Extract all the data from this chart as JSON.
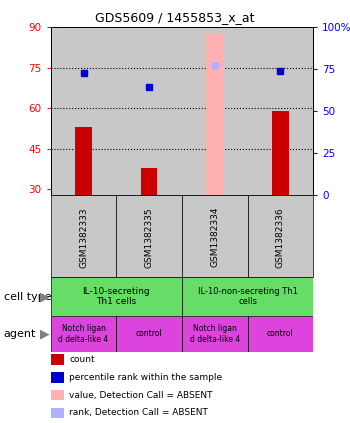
{
  "title": "GDS5609 / 1455853_x_at",
  "samples": [
    "GSM1382333",
    "GSM1382335",
    "GSM1382334",
    "GSM1382336"
  ],
  "bar_values": [
    53,
    38,
    null,
    59
  ],
  "dot_values": [
    73,
    68,
    76,
    74
  ],
  "absent_bar_value": 88,
  "absent_dot_value": 76,
  "absent_sample_idx": 2,
  "ylim_left": [
    28,
    90
  ],
  "ylim_right": [
    0,
    100
  ],
  "yticks_left": [
    30,
    45,
    60,
    75,
    90
  ],
  "yticks_right": [
    0,
    25,
    50,
    75,
    100
  ],
  "yticklabels_left": [
    "30",
    "45",
    "60",
    "75",
    "90"
  ],
  "yticklabels_right": [
    "0",
    "25",
    "50",
    "75",
    "100%"
  ],
  "hlines": [
    45,
    60,
    75
  ],
  "cell_type_labels": [
    "IL-10-secreting\nTh1 cells",
    "IL-10-non-secreting Th1\ncells"
  ],
  "cell_type_color": "#66dd66",
  "agent_labels": [
    "Notch ligan\nd delta-like 4",
    "control",
    "Notch ligan\nd delta-like 4",
    "control"
  ],
  "agent_color": "#dd44dd",
  "bar_color": "#cc0000",
  "dot_color": "#0000cc",
  "absent_bar_color": "#ffb0b0",
  "absent_dot_color": "#b0b0ff",
  "bar_width": 0.25,
  "absent_bar_width": 0.28,
  "plot_bg_color": "#ffffff",
  "col_bg_color": "#c8c8c8",
  "legend_items": [
    {
      "label": "count",
      "color": "#cc0000"
    },
    {
      "label": "percentile rank within the sample",
      "color": "#0000cc"
    },
    {
      "label": "value, Detection Call = ABSENT",
      "color": "#ffb0b0"
    },
    {
      "label": "rank, Detection Call = ABSENT",
      "color": "#b0b0ff"
    }
  ]
}
